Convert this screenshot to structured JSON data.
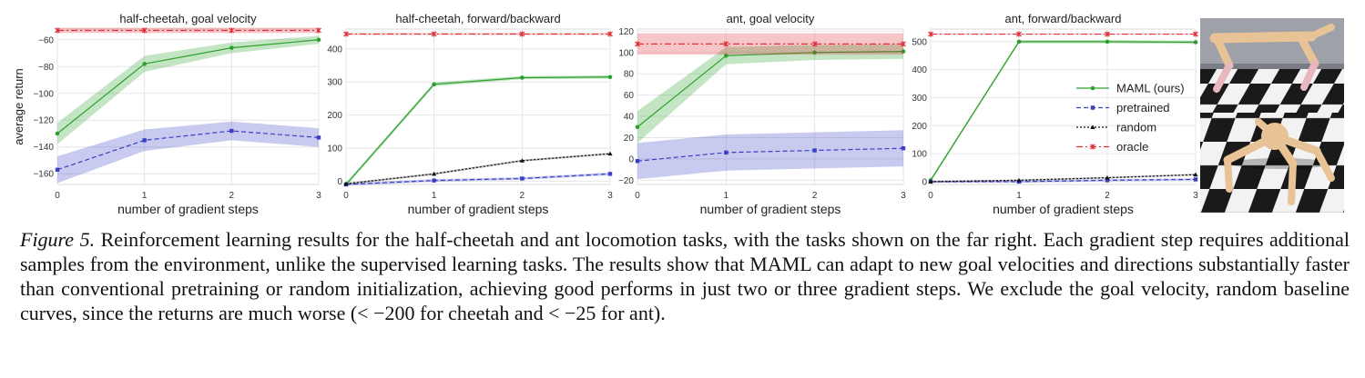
{
  "caption": {
    "label": "Figure 5.",
    "text": "Reinforcement learning results for the half-cheetah and ant locomotion tasks, with the tasks shown on the far right. Each gradient step requires additional samples from the environment, unlike the supervised learning tasks. The results show that MAML can adapt to new goal velocities and directions substantially faster than conventional pretraining or random initialization, achieving good performs in just two or three gradient steps. We exclude the goal velocity, random baseline curves, since the returns are much worse (< −200 for cheetah and < −25 for ant)."
  },
  "colors": {
    "maml": "#2ca02c",
    "pretrained": "#3b3fc4",
    "random": "#111111",
    "oracle": "#e0303a",
    "grid": "#e6e6e6"
  },
  "legend": {
    "placement": "center-right of fourth panel",
    "entries": [
      {
        "key": "maml",
        "label": "MAML (ours)"
      },
      {
        "key": "pretrained",
        "label": "pretrained"
      },
      {
        "key": "random",
        "label": "random"
      },
      {
        "key": "oracle",
        "label": "oracle"
      }
    ]
  },
  "chart_data": [
    {
      "type": "line",
      "title": "half-cheetah, goal velocity",
      "xlabel": "number of gradient steps",
      "ylabel": "average return",
      "x": [
        0,
        1,
        2,
        3
      ],
      "xlim": [
        0,
        3
      ],
      "ylim": [
        -168,
        -52
      ],
      "yticks": [
        -160,
        -140,
        -120,
        -100,
        -80,
        -60
      ],
      "grid": true,
      "series": [
        {
          "key": "maml",
          "values": [
            -130,
            -78,
            -66,
            -60
          ],
          "band": [
            8,
            6,
            4,
            3
          ]
        },
        {
          "key": "pretrained",
          "values": [
            -157,
            -135,
            -128,
            -133
          ],
          "band": [
            10,
            8,
            7,
            7
          ]
        },
        {
          "key": "oracle",
          "values": [
            -53,
            -53,
            -53,
            -53
          ],
          "band": [
            2,
            2,
            2,
            2
          ]
        }
      ]
    },
    {
      "type": "line",
      "title": "half-cheetah, forward/backward",
      "xlabel": "number of gradient steps",
      "ylabel": "",
      "x": [
        0,
        1,
        2,
        3
      ],
      "xlim": [
        0,
        3
      ],
      "ylim": [
        -10,
        460
      ],
      "yticks": [
        0,
        100,
        200,
        300,
        400
      ],
      "grid": true,
      "series": [
        {
          "key": "maml",
          "values": [
            -10,
            293,
            313,
            315
          ],
          "band": [
            6,
            6,
            5,
            5
          ]
        },
        {
          "key": "pretrained",
          "values": [
            -10,
            2,
            8,
            22
          ],
          "band": [
            4,
            4,
            4,
            4
          ]
        },
        {
          "key": "random",
          "values": [
            -8,
            22,
            62,
            83
          ],
          "band": [
            3,
            3,
            3,
            3
          ]
        },
        {
          "key": "oracle",
          "values": [
            445,
            445,
            445,
            445
          ],
          "band": [
            3,
            3,
            3,
            3
          ]
        }
      ]
    },
    {
      "type": "line",
      "title": "ant, goal velocity",
      "xlabel": "number of gradient steps",
      "ylabel": "",
      "x": [
        0,
        1,
        2,
        3
      ],
      "xlim": [
        0,
        3
      ],
      "ylim": [
        -24,
        122
      ],
      "yticks": [
        -20,
        0,
        20,
        40,
        60,
        80,
        100,
        120
      ],
      "grid": true,
      "series": [
        {
          "key": "maml",
          "values": [
            30,
            97,
            100,
            101
          ],
          "band": [
            15,
            8,
            7,
            7
          ]
        },
        {
          "key": "pretrained",
          "values": [
            -2,
            6,
            8,
            10
          ],
          "band": [
            17,
            17,
            17,
            17
          ]
        },
        {
          "key": "oracle",
          "values": [
            108,
            108,
            108,
            108
          ],
          "band": [
            10,
            10,
            10,
            10
          ]
        }
      ]
    },
    {
      "type": "line",
      "title": "ant, forward/backward",
      "xlabel": "number of gradient steps",
      "ylabel": "",
      "x": [
        0,
        1,
        2,
        3
      ],
      "xlim": [
        0,
        3
      ],
      "ylim": [
        -10,
        545
      ],
      "yticks": [
        0,
        100,
        200,
        300,
        400,
        500
      ],
      "grid": true,
      "series": [
        {
          "key": "maml",
          "values": [
            5,
            500,
            500,
            498
          ],
          "band": [
            6,
            6,
            6,
            6
          ]
        },
        {
          "key": "pretrained",
          "values": [
            0,
            0,
            5,
            8
          ],
          "band": [
            4,
            4,
            4,
            4
          ]
        },
        {
          "key": "random",
          "values": [
            0,
            5,
            14,
            25
          ],
          "band": [
            3,
            3,
            3,
            3
          ]
        },
        {
          "key": "oracle",
          "values": [
            527,
            527,
            527,
            527
          ],
          "band": [
            2,
            2,
            2,
            2
          ]
        }
      ]
    }
  ]
}
